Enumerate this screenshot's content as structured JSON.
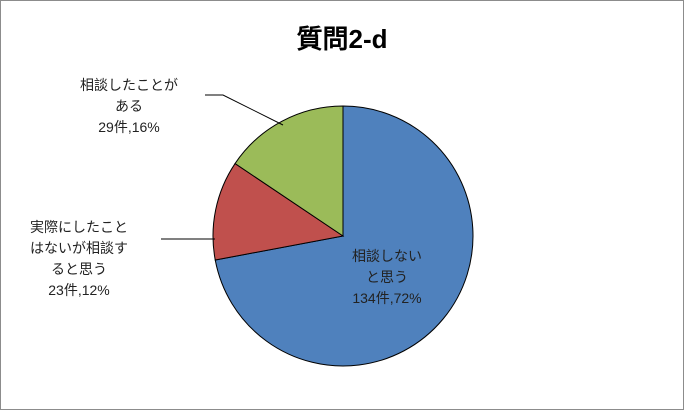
{
  "chart_data": {
    "type": "pie",
    "title": "質問2-d",
    "categories": [
      "相談しないと思う",
      "実際にしたことはないが相談すると思う",
      "相談したことがある"
    ],
    "values": [
      134,
      23,
      29
    ],
    "value_labels": [
      "134件,72%",
      "23件,12%",
      "29件,16%"
    ],
    "colors": [
      "#4f81bd",
      "#c0504d",
      "#9bbb59"
    ]
  }
}
